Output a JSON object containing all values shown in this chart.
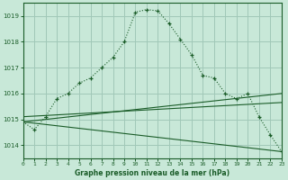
{
  "title": "Graphe pression niveau de la mer (hPa)",
  "bg_color": "#c8e8d8",
  "grid_color": "#a0c8b8",
  "line_color": "#1a5c28",
  "xlim": [
    0,
    23
  ],
  "ylim": [
    1013.5,
    1019.5
  ],
  "yticks": [
    1014,
    1015,
    1016,
    1017,
    1018,
    1019
  ],
  "xticks": [
    0,
    1,
    2,
    3,
    4,
    5,
    6,
    7,
    8,
    9,
    10,
    11,
    12,
    13,
    14,
    15,
    16,
    17,
    18,
    19,
    20,
    21,
    22,
    23
  ],
  "series1_x": [
    0,
    1,
    2,
    3,
    4,
    5,
    6,
    7,
    8,
    9,
    10,
    11,
    12,
    13,
    14,
    15,
    16,
    17,
    18,
    19,
    20,
    21,
    22,
    23
  ],
  "series1_y": [
    1014.9,
    1014.6,
    1015.1,
    1015.8,
    1016.0,
    1016.4,
    1016.6,
    1017.0,
    1017.4,
    1018.0,
    1019.15,
    1019.25,
    1019.2,
    1018.7,
    1018.1,
    1017.5,
    1016.7,
    1016.6,
    1016.0,
    1015.8,
    1016.0,
    1015.1,
    1014.4,
    1013.75
  ],
  "series2_x": [
    0,
    23
  ],
  "series2_y": [
    1014.9,
    1016.0
  ],
  "series3_x": [
    0,
    23
  ],
  "series3_y": [
    1014.9,
    1013.75
  ],
  "series4_x": [
    0,
    23
  ],
  "series4_y": [
    1015.1,
    1015.65
  ]
}
